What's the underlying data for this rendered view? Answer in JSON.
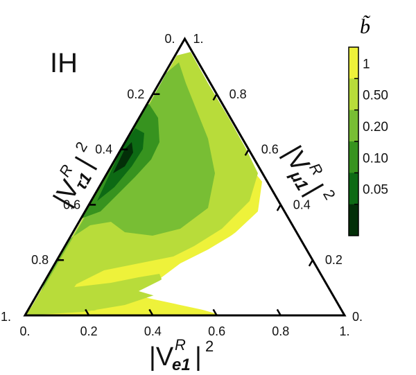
{
  "chart_data": {
    "type": "ternary-filled-contour",
    "panel_label": "IH",
    "axes": {
      "bottom": {
        "label_base": "|V",
        "label_sup": "R",
        "label_sub": "e1",
        "label_tail": "|",
        "label_pow": "2",
        "ticks": [
          "0.",
          "0.2",
          "0.4",
          "0.6",
          "0.8",
          "1."
        ]
      },
      "left": {
        "label_base": "|V",
        "label_sup": "R",
        "label_sub": "τ1",
        "label_tail": "|",
        "label_pow": "2",
        "ticks": [
          "0.",
          "0.2",
          "0.4",
          "0.6",
          "0.8",
          "1."
        ]
      },
      "right": {
        "label_base": "|V",
        "label_sup": "R",
        "label_sub": "μ1",
        "label_tail": "|",
        "label_pow": "2",
        "ticks": [
          "1.",
          "0.8",
          "0.6",
          "0.4",
          "0.2",
          "0."
        ]
      }
    },
    "colorbar": {
      "title": "b̃",
      "levels": [
        "1",
        "0.50",
        "0.20",
        "0.10",
        "0.05"
      ],
      "colors": [
        "#eef23a",
        "#b8dc3a",
        "#78be34",
        "#37931f",
        "#0d6a14",
        "#032f08"
      ]
    },
    "regions": [
      {
        "name": "b>1",
        "color": "#eef23a"
      },
      {
        "name": "0.5-1",
        "color": "#b8dc3a"
      },
      {
        "name": "0.2-0.5",
        "color": "#78be34"
      },
      {
        "name": "0.1-0.2",
        "color": "#37931f"
      },
      {
        "name": "0.05-0.1",
        "color": "#0d6a14"
      },
      {
        "name": "<0.05",
        "color": "#032f08"
      }
    ]
  }
}
